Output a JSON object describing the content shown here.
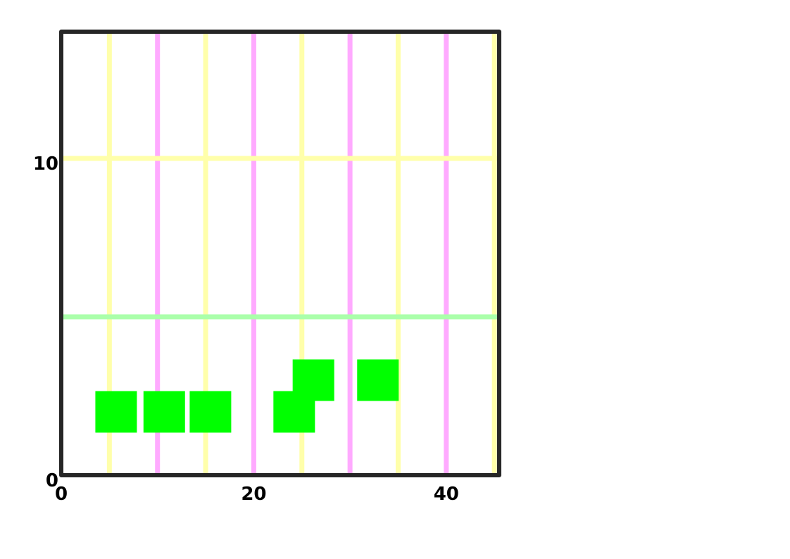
{
  "chart_data": {
    "type": "scatter",
    "marker": "square",
    "xlim": [
      0,
      45.5
    ],
    "ylim": [
      0,
      14
    ],
    "x_ticks": [
      {
        "value": 0,
        "label": "0"
      },
      {
        "value": 20,
        "label": "20"
      },
      {
        "value": 40,
        "label": "40"
      }
    ],
    "y_ticks": [
      {
        "value": 0,
        "label": "0"
      },
      {
        "value": 10,
        "label": "10"
      }
    ],
    "vertical_lines": [
      {
        "x": 5,
        "color": "#ffffaa"
      },
      {
        "x": 10,
        "color": "#ffaaff"
      },
      {
        "x": 15,
        "color": "#ffffaa"
      },
      {
        "x": 20,
        "color": "#ffaaff"
      },
      {
        "x": 25,
        "color": "#ffffaa"
      },
      {
        "x": 30,
        "color": "#ffaaff"
      },
      {
        "x": 35,
        "color": "#ffffaa"
      },
      {
        "x": 40,
        "color": "#ffaaff"
      },
      {
        "x": 45,
        "color": "#ffffaa"
      }
    ],
    "horizontal_lines": [
      {
        "y": 10,
        "color": "#ffffaa"
      },
      {
        "y": 5,
        "color": "#aaffaa"
      }
    ],
    "series": [
      {
        "color": "#00ff00",
        "points": [
          {
            "x": 5.7,
            "y": 2
          },
          {
            "x": 10.7,
            "y": 2
          },
          {
            "x": 15.5,
            "y": 2
          },
          {
            "x": 24.2,
            "y": 2
          },
          {
            "x": 26.2,
            "y": 3
          },
          {
            "x": 32.9,
            "y": 3
          }
        ]
      }
    ],
    "frame_color": "#262626",
    "grid": false
  }
}
